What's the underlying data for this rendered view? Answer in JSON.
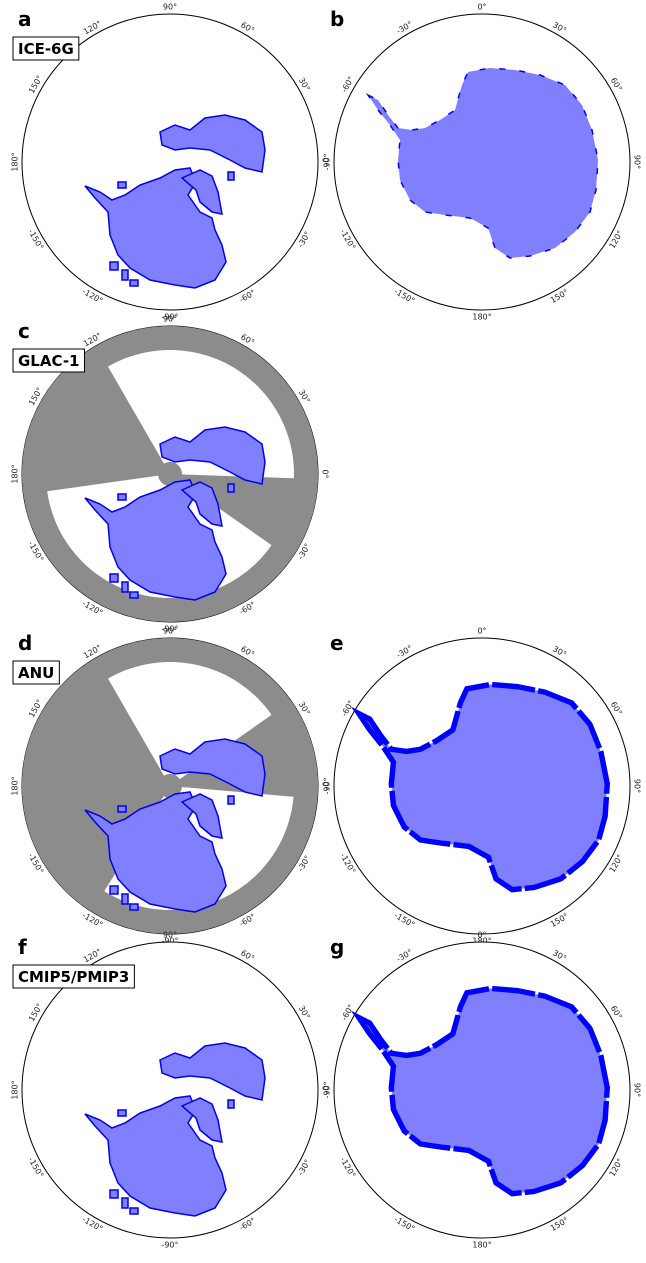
{
  "panels": [
    {
      "letter": "a",
      "label": "ICE-6G",
      "lon_labels": [
        "90°",
        "60°",
        "30°",
        "0°",
        "-30°",
        "-60°",
        "-90°",
        "-120°",
        "-150°",
        "180°",
        "150°",
        "120°"
      ]
    },
    {
      "letter": "b",
      "lon_labels": [
        "0°",
        "30°",
        "60°",
        "90°",
        "120°",
        "150°",
        "180°",
        "-150°",
        "-120°",
        "-90°",
        "-60°",
        "-30°"
      ]
    },
    {
      "letter": "c",
      "label": "GLAC-1",
      "lon_labels": [
        "90°",
        "60°",
        "30°",
        "0°",
        "-30°",
        "-60°",
        "-90°",
        "-120°",
        "-150°",
        "180°",
        "150°",
        "120°"
      ]
    },
    {
      "letter": "d",
      "label": "ANU",
      "lon_labels": [
        "90°",
        "60°",
        "30°",
        "0°",
        "-30°",
        "-60°",
        "-90°",
        "-120°",
        "-150°",
        "180°",
        "150°",
        "120°"
      ]
    },
    {
      "letter": "e",
      "lon_labels": [
        "0°",
        "30°",
        "60°",
        "90°",
        "120°",
        "150°",
        "180°",
        "-150°",
        "-120°",
        "-90°",
        "-60°",
        "-30°"
      ]
    },
    {
      "letter": "f",
      "label": "CMIP5/PMIP3",
      "lon_labels": [
        "90°",
        "60°",
        "30°",
        "0°",
        "-30°",
        "-60°",
        "-90°",
        "-120°",
        "-150°",
        "180°",
        "150°",
        "120°"
      ]
    },
    {
      "letter": "g",
      "lon_labels": [
        "0°",
        "30°",
        "60°",
        "90°",
        "120°",
        "150°",
        "180°",
        "-150°",
        "-120°",
        "-90°",
        "-60°",
        "-30°"
      ]
    }
  ]
}
